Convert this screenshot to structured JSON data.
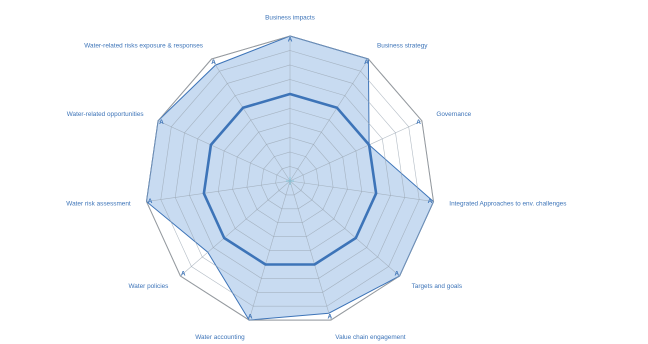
{
  "chart_data": {
    "type": "radar",
    "title": "",
    "axes": [
      "Business impacts",
      "Business strategy",
      "Governance",
      "Integrated Approaches to env. challenges",
      "Targets and goals",
      "Value chain engagement",
      "Water accounting",
      "Water policies",
      "Water risk assessment",
      "Water-related opportunities",
      "Water-related risks exposure & responses"
    ],
    "rlim": [
      0,
      10
    ],
    "rings": 10,
    "grid": true,
    "legend": "none",
    "point_label": "A",
    "series": [
      {
        "role": "maximum",
        "values": [
          10,
          10,
          10,
          10,
          10,
          10,
          10,
          10,
          10,
          10,
          10
        ]
      },
      {
        "role": "score",
        "values": [
          10,
          10,
          6,
          10,
          10,
          9.5,
          10,
          7.5,
          10,
          10,
          9.5
        ]
      },
      {
        "role": "reference",
        "values": [
          6,
          6,
          6,
          6,
          6,
          6,
          6,
          6,
          6,
          6,
          6
        ]
      }
    ],
    "colors": {
      "axis_text": "#3d74b8",
      "grid": "#9aa6b2",
      "outline": "#8d8d8d",
      "fill": "#bed5ef",
      "fill_stroke": "#3d74b8",
      "reference": "#3d74b8",
      "center": "#7cc4d8"
    }
  }
}
